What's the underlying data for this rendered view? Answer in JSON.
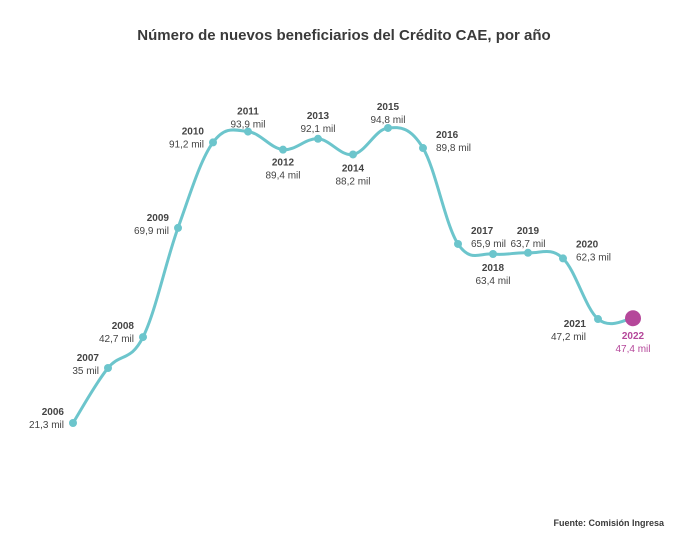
{
  "chart_data": {
    "type": "line",
    "title": "Número de nuevos beneficiarios del Crédito CAE, por año",
    "source": "Fuente: Comisión Ingresa",
    "xlabel": "",
    "ylabel": "",
    "unit_suffix": "mil",
    "x": [
      "2006",
      "2007",
      "2008",
      "2009",
      "2010",
      "2011",
      "2012",
      "2013",
      "2014",
      "2015",
      "2016",
      "2017",
      "2018",
      "2019",
      "2020",
      "2021",
      "2022"
    ],
    "values": [
      21.3,
      35,
      42.7,
      69.9,
      91.2,
      93.9,
      89.4,
      92.1,
      88.2,
      94.8,
      89.8,
      65.9,
      63.4,
      63.7,
      62.3,
      47.2,
      47.4
    ],
    "value_labels": [
      "21,3 mil",
      "35 mil",
      "42,7 mil",
      "69,9 mil",
      "91,2 mil",
      "93,9 mil",
      "89,4 mil",
      "92,1 mil",
      "88,2 mil",
      "94,8 mil",
      "89,8 mil",
      "65,9 mil",
      "63,4 mil",
      "63,7 mil",
      "62,3 mil",
      "47,2 mil",
      "47,4 mil"
    ],
    "highlight_index": 16,
    "grid": false,
    "legend": "none",
    "colors": {
      "line": "#6cc5cc",
      "highlight": "#b5479a",
      "text": "#444444"
    }
  }
}
